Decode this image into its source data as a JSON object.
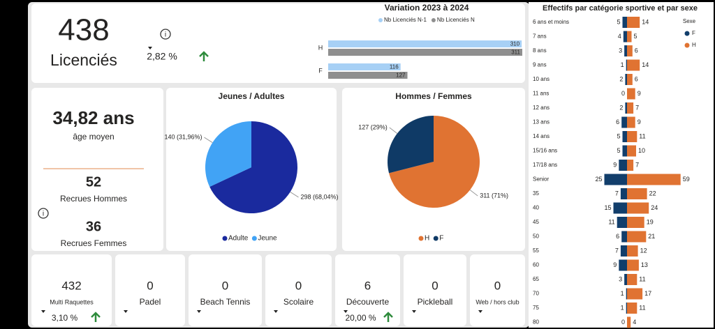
{
  "header": {
    "value": "438",
    "label": "Licenciés",
    "change": "2,82 %"
  },
  "age": {
    "value": "34,82 ans",
    "label": "âge moyen"
  },
  "recruits": [
    {
      "value": "52",
      "label": "Recrues Hommes"
    },
    {
      "value": "36",
      "label": "Recrues Femmes"
    }
  ],
  "activities": [
    {
      "value": "432",
      "label": "Multi Raquettes",
      "change": "3,10 %"
    },
    {
      "value": "0",
      "label": "Padel"
    },
    {
      "value": "0",
      "label": "Beach Tennis"
    },
    {
      "value": "0",
      "label": "Scolaire"
    },
    {
      "value": "6",
      "label": "Découverte",
      "change": "20,00 %"
    },
    {
      "value": "0",
      "label": "Pickleball"
    },
    {
      "value": "0",
      "label": "Web / hors club"
    }
  ],
  "chart_data": [
    {
      "type": "bar",
      "title": "Variation 2023 à 2024",
      "categories": [
        "H",
        "F"
      ],
      "series": [
        {
          "name": "Nb Licenciés N-1",
          "color": "#a7d0f5",
          "values": [
            310,
            116
          ]
        },
        {
          "name": "Nb Licenciés N",
          "color": "#8f8f8f",
          "values": [
            311,
            127
          ]
        }
      ]
    },
    {
      "type": "pie",
      "title": "Jeunes / Adultes",
      "categories": [
        "Adulte",
        "Jeune"
      ],
      "values": [
        298,
        140
      ],
      "value_labels": [
        "298 (68,04%)",
        "140 (31,96%)"
      ],
      "colors": [
        "#1a2a9e",
        "#41a3f5"
      ]
    },
    {
      "type": "pie",
      "title": "Hommes / Femmes",
      "categories": [
        "H",
        "F"
      ],
      "values": [
        311,
        127
      ],
      "value_labels": [
        "311 (71%)",
        "127 (29%)"
      ],
      "colors": [
        "#e07332",
        "#0f3a66"
      ]
    },
    {
      "type": "pyramid",
      "title": "Effectifs par catégorie sportive et par sexe",
      "legend_title": "Sexe",
      "categories": [
        "6 ans et moins",
        "7 ans",
        "8 ans",
        "9 ans",
        "10 ans",
        "11 ans",
        "12 ans",
        "13 ans",
        "14 ans",
        "15/16 ans",
        "17/18 ans",
        "Senior",
        "35",
        "40",
        "45",
        "50",
        "55",
        "60",
        "65",
        "70",
        "75",
        "80"
      ],
      "series": [
        {
          "name": "F",
          "color": "#123e6b",
          "values": [
            5,
            4,
            3,
            1,
            2,
            0,
            2,
            6,
            5,
            5,
            9,
            25,
            7,
            15,
            11,
            6,
            7,
            9,
            3,
            1,
            1,
            0
          ]
        },
        {
          "name": "H",
          "color": "#e07332",
          "values": [
            14,
            5,
            6,
            14,
            6,
            9,
            7,
            9,
            11,
            10,
            7,
            59,
            22,
            24,
            19,
            21,
            12,
            13,
            11,
            17,
            11,
            4
          ]
        }
      ]
    }
  ]
}
